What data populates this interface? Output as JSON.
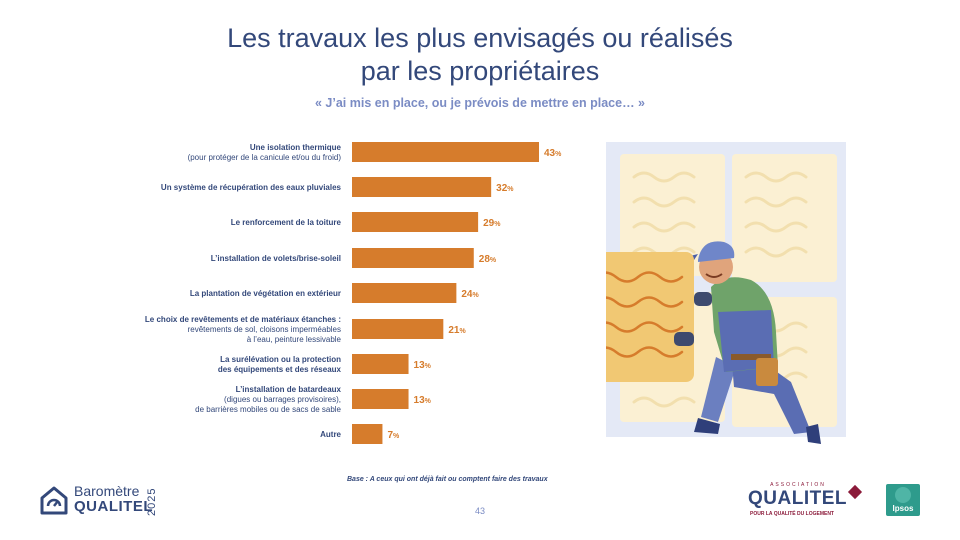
{
  "title": {
    "line1": "Les travaux les plus envisagés ou réalisés",
    "line2": "par les propriétaires"
  },
  "subtitle": "« J’ai mis en place, ou je prévois de mettre en place… »",
  "colors": {
    "bar": "#d67c2c",
    "label": "#33487a",
    "value": "#d67c2c",
    "accent": "#8b1a3a"
  },
  "chart_data": {
    "type": "bar",
    "orientation": "horizontal",
    "title": "Les travaux les plus envisagés ou réalisés par les propriétaires",
    "value_suffix": "%",
    "xlim": [
      0,
      43
    ],
    "categories": [
      [
        "Une isolation thermique",
        "(pour protéger de la canicule et/ou du froid)"
      ],
      [
        "Un système de récupération des eaux pluviales"
      ],
      [
        "Le renforcement de la toiture"
      ],
      [
        "L’installation de volets/brise-soleil"
      ],
      [
        "La plantation de végétation en extérieur"
      ],
      [
        "Le choix de revêtements et de matériaux étanches :",
        "revêtements de sol, cloisons imperméables",
        "à l’eau, peinture lessivable"
      ],
      [
        "La surélévation ou la protection",
        "des équipements et des réseaux"
      ],
      [
        "L’installation de batardeaux",
        "(digues ou barrages provisoires),",
        "de barrières mobiles ou de sacs de sable"
      ],
      [
        "Autre"
      ]
    ],
    "values": [
      43,
      32,
      29,
      28,
      24,
      21,
      13,
      13,
      7
    ]
  },
  "footer": {
    "base": "Base : A ceux qui ont déjà fait ou comptent faire des travaux",
    "page_number": "43",
    "barometre_line1": "Baromètre",
    "barometre_line2": "QUALITEL",
    "barometre_year": "2025",
    "association_label": "ASSOCIATION",
    "qualitel_name": "QUALITEL",
    "qualitel_tagline": "POUR LA QUALITÉ DU LOGEMENT",
    "ipsos": "Ipsos"
  }
}
